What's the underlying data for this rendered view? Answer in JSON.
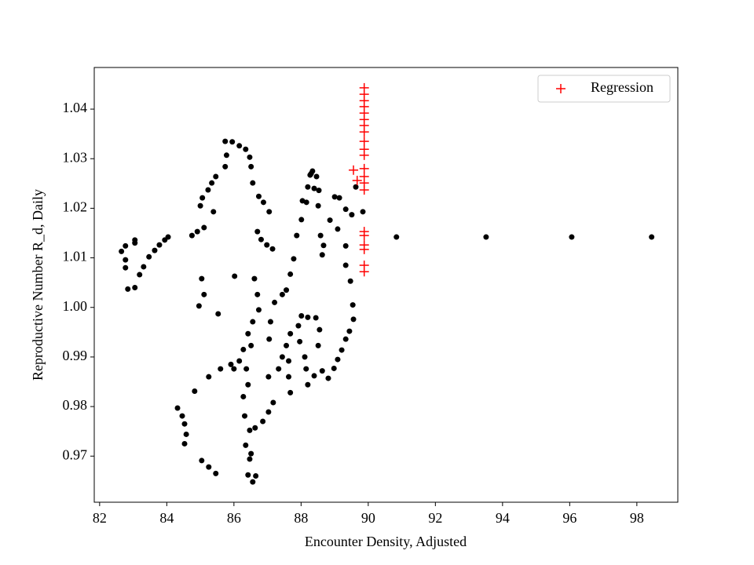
{
  "chart_data": {
    "type": "scatter",
    "x_label": "Encounter Density, Adjusted",
    "y_label": "Reproductive Number R_d, Daily",
    "xlim": [
      81.84,
      99.22
    ],
    "ylim": [
      0.9607,
      1.0484
    ],
    "xticks": [
      82,
      84,
      86,
      88,
      90,
      92,
      94,
      96,
      98
    ],
    "yticks": [
      0.97,
      0.98,
      0.99,
      {
        "value": 1.0,
        "label": "1.00"
      },
      1.01,
      1.02,
      1.03,
      1.04
    ],
    "legend": "upper right",
    "series": [
      {
        "color": "#000000",
        "marker": "o",
        "x": [
          82.65,
          82.77,
          82.77,
          82.77,
          82.84,
          83.05,
          83.05,
          83.05,
          83.19,
          83.31,
          83.47,
          83.64,
          83.78,
          83.94,
          84.04,
          84.32,
          84.46,
          84.53,
          84.58,
          84.53,
          84.83,
          85.04,
          85.25,
          85.46,
          85.25,
          85.6,
          85.91,
          84.75,
          84.91,
          85.11,
          85.39,
          85.0,
          85.06,
          85.23,
          85.34,
          85.46,
          85.74,
          85.78,
          85.74,
          85.95,
          86.16,
          86.35,
          86.47,
          86.51,
          86.56,
          86.74,
          86.88,
          87.05,
          86.7,
          86.81,
          86.98,
          87.15,
          85.04,
          85.11,
          84.96,
          85.53,
          86.02,
          86.61,
          86.7,
          86.74,
          86.56,
          86.42,
          86.28,
          86.16,
          86.0,
          86.51,
          86.37,
          86.42,
          86.28,
          86.32,
          86.35,
          86.47,
          86.42,
          86.56,
          86.65,
          86.51,
          86.47,
          86.63,
          86.86,
          87.03,
          87.17,
          87.05,
          87.09,
          87.21,
          87.44,
          87.03,
          87.33,
          87.44,
          87.56,
          87.68,
          87.63,
          87.68,
          87.63,
          87.56,
          87.68,
          87.78,
          87.87,
          88.01,
          88.04,
          88.2,
          88.27,
          88.34,
          88.46,
          88.53,
          88.51,
          88.58,
          88.63,
          88.67,
          88.86,
          89.0,
          89.14,
          89.33,
          89.51,
          89.09,
          89.33,
          89.33,
          89.47,
          89.54,
          89.56,
          89.44,
          89.33,
          89.21,
          89.09,
          88.98,
          88.81,
          88.63,
          88.39,
          88.51,
          88.55,
          88.44,
          88.2,
          88.01,
          87.92,
          87.96,
          88.11,
          88.15,
          88.2,
          88.3,
          88.39,
          88.16,
          89.84,
          89.63,
          90.84,
          93.51,
          96.06,
          98.44
        ],
        "values": [
          1.0113,
          1.0124,
          1.0096,
          1.008,
          1.0037,
          1.004,
          1.0136,
          1.013,
          1.0066,
          1.0082,
          1.0102,
          1.0115,
          1.0126,
          1.0136,
          1.0142,
          0.9797,
          0.9781,
          0.9765,
          0.9744,
          0.9725,
          0.9831,
          0.9691,
          0.9678,
          0.9665,
          0.986,
          0.9876,
          0.9885,
          1.0145,
          1.0153,
          1.0161,
          1.0193,
          1.0205,
          1.0221,
          1.0237,
          1.0251,
          1.0264,
          1.0284,
          1.0307,
          1.0335,
          1.0334,
          1.0326,
          1.0319,
          1.0303,
          1.0284,
          1.0251,
          1.0224,
          1.0212,
          1.0193,
          1.0153,
          1.0137,
          1.0126,
          1.0118,
          1.0058,
          1.0026,
          1.0003,
          0.9987,
          1.0063,
          1.0058,
          1.0026,
          0.9995,
          0.9971,
          0.9947,
          0.9915,
          0.9892,
          0.9876,
          0.9923,
          0.9876,
          0.9844,
          0.982,
          0.9781,
          0.9722,
          0.9694,
          0.9662,
          0.9648,
          0.966,
          0.9705,
          0.9752,
          0.9757,
          0.977,
          0.9789,
          0.9808,
          0.9936,
          0.9971,
          1.001,
          1.0026,
          0.986,
          0.9876,
          0.99,
          0.9923,
          0.9947,
          0.986,
          0.9828,
          0.9892,
          1.0035,
          1.0067,
          1.0098,
          1.0145,
          1.0177,
          1.0215,
          1.0243,
          1.0267,
          1.0275,
          1.0264,
          1.0236,
          1.0205,
          1.0145,
          1.0106,
          1.0125,
          1.0176,
          1.0223,
          1.0221,
          1.0198,
          1.0187,
          1.0158,
          1.0124,
          1.0085,
          1.0053,
          1.0005,
          0.9976,
          0.9952,
          0.9936,
          0.9914,
          0.9895,
          0.9877,
          0.9857,
          0.9872,
          0.9862,
          0.9923,
          0.9955,
          0.9979,
          0.998,
          0.9983,
          0.9963,
          0.9931,
          0.99,
          0.9876,
          0.9844,
          1.027,
          1.024,
          1.0212,
          1.0193,
          1.0243,
          1.0142,
          1.0142,
          1.0142,
          1.0142
        ]
      },
      {
        "name": "Regression",
        "color": "#ff0000",
        "marker": "+",
        "x": [
          89.88,
          89.88,
          89.88,
          89.88,
          89.88,
          89.88,
          89.88,
          89.88,
          89.88,
          89.88,
          89.88,
          89.88,
          89.88,
          89.88,
          89.88,
          89.88,
          89.88,
          89.88,
          89.88,
          89.88,
          89.88,
          89.56,
          89.67
        ],
        "values": [
          1.0443,
          1.043,
          1.0417,
          1.0405,
          1.0392,
          1.0379,
          1.0367,
          1.0354,
          1.0335,
          1.0319,
          1.0307,
          1.028,
          1.0264,
          1.0251,
          1.0237,
          1.0153,
          1.0145,
          1.0126,
          1.0117,
          1.0085,
          1.0072,
          1.0277,
          1.0256
        ]
      }
    ]
  }
}
